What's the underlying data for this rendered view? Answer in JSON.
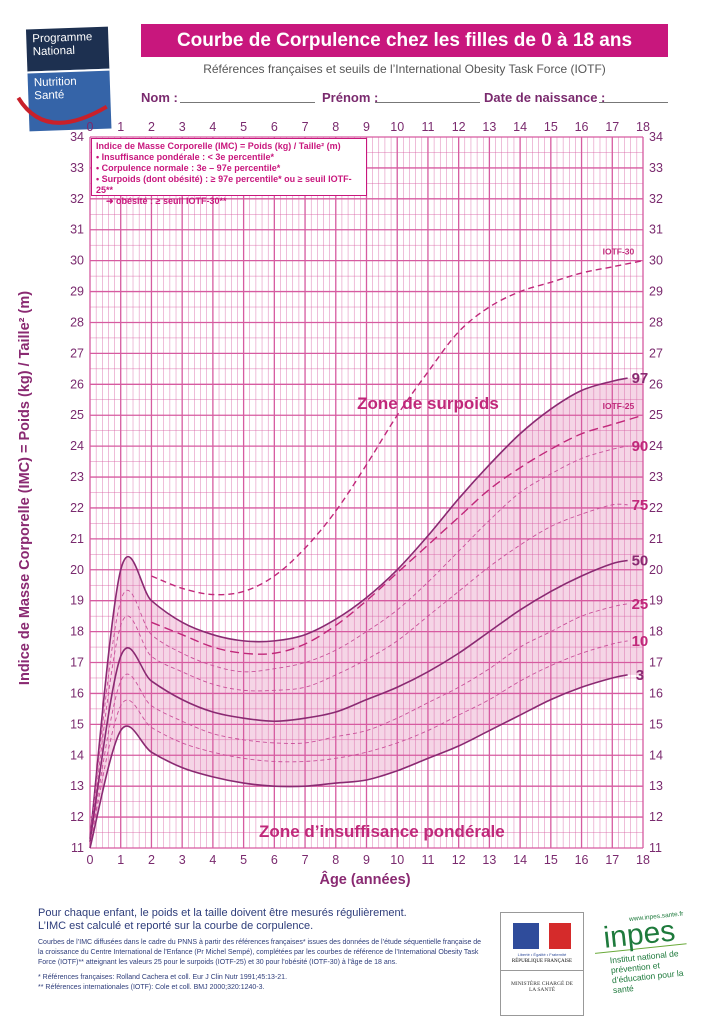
{
  "logo": {
    "line1": "Programme",
    "line2": "National",
    "line3": "Nutrition",
    "line4": "Santé"
  },
  "header": {
    "title": "Courbe de Corpulence chez les filles de 0 à 18 ans",
    "subtitle": "Références françaises et seuils de l’International Obesity Task Force (IOTF)",
    "fields": [
      "Nom :",
      "Prénom :",
      "Date de naissance :"
    ]
  },
  "legend": {
    "line1": "Indice de Masse Corporelle (IMC) = Poids (kg) / Taille² (m)",
    "line2": "• Insuffisance pondérale : < 3e percentile*",
    "line3": "• Corpulence normale : 3e – 97e percentile*",
    "line4": "• Surpoids (dont obésité) : ≥ 97e percentile* ou ≥ seuil IOTF-25**",
    "line5": "➜ obésité : ≥ seuil IOTF-30**"
  },
  "colors": {
    "accent": "#c8177d",
    "grid": "#d65ba0",
    "curve": "#8a2a72",
    "band": "#f5d5e6",
    "text_blue": "#2d3c7a"
  },
  "chart_data": {
    "type": "line",
    "title": "Courbe de Corpulence chez les filles de 0 à 18 ans",
    "xlabel": "Âge (années)",
    "ylabel": "Indice de Masse Corporelle (IMC) = Poids (kg) / Taille² (m)",
    "xlim": [
      0,
      18
    ],
    "ylim": [
      11,
      34
    ],
    "xticks": [
      0,
      1,
      2,
      3,
      4,
      5,
      6,
      7,
      8,
      9,
      10,
      11,
      12,
      13,
      14,
      15,
      16,
      17,
      18
    ],
    "yticks": [
      11,
      12,
      13,
      14,
      15,
      16,
      17,
      18,
      19,
      20,
      21,
      22,
      23,
      24,
      25,
      26,
      27,
      28,
      29,
      30,
      31,
      32,
      33,
      34
    ],
    "grid": true,
    "shaded_band": [
      "3",
      "97"
    ],
    "series": [
      {
        "name": "97",
        "style": "solid",
        "x": [
          0,
          1,
          2,
          3,
          4,
          5,
          6,
          7,
          8,
          9,
          10,
          11,
          12,
          13,
          14,
          15,
          16,
          17,
          17.5
        ],
        "y": [
          11.3,
          20.0,
          19.0,
          18.3,
          17.9,
          17.7,
          17.7,
          17.9,
          18.4,
          19.1,
          20.0,
          21.1,
          22.3,
          23.4,
          24.4,
          25.2,
          25.8,
          26.1,
          26.2
        ]
      },
      {
        "name": "90",
        "style": "dashed",
        "x": [
          0,
          1,
          2,
          3,
          4,
          5,
          6,
          7,
          8,
          9,
          10,
          11,
          12,
          13,
          14,
          15,
          16,
          17,
          17.5
        ],
        "y": [
          11.3,
          19.0,
          17.9,
          17.3,
          16.9,
          16.7,
          16.8,
          17.0,
          17.4,
          18.0,
          18.7,
          19.6,
          20.6,
          21.6,
          22.5,
          23.1,
          23.6,
          23.9,
          24.0
        ]
      },
      {
        "name": "75",
        "style": "dashed",
        "x": [
          0,
          1,
          2,
          3,
          4,
          5,
          6,
          7,
          8,
          9,
          10,
          11,
          12,
          13,
          14,
          15,
          16,
          17,
          17.5
        ],
        "y": [
          11.2,
          18.2,
          17.2,
          16.7,
          16.3,
          16.1,
          16.1,
          16.2,
          16.6,
          17.1,
          17.7,
          18.5,
          19.3,
          20.1,
          20.8,
          21.4,
          21.8,
          22.1,
          22.1
        ]
      },
      {
        "name": "50",
        "style": "solid",
        "x": [
          0,
          1,
          2,
          3,
          4,
          5,
          6,
          7,
          8,
          9,
          10,
          11,
          12,
          13,
          14,
          15,
          16,
          17,
          17.5
        ],
        "y": [
          11.2,
          17.2,
          16.4,
          15.8,
          15.4,
          15.2,
          15.1,
          15.2,
          15.4,
          15.8,
          16.2,
          16.7,
          17.3,
          18.0,
          18.7,
          19.3,
          19.8,
          20.2,
          20.3
        ]
      },
      {
        "name": "25",
        "style": "dashed",
        "x": [
          0,
          1,
          2,
          3,
          4,
          5,
          6,
          7,
          8,
          9,
          10,
          11,
          12,
          13,
          14,
          15,
          16,
          17,
          17.5
        ],
        "y": [
          11.1,
          16.4,
          15.6,
          15.1,
          14.7,
          14.5,
          14.4,
          14.4,
          14.6,
          14.8,
          15.2,
          15.7,
          16.2,
          16.8,
          17.5,
          18.0,
          18.5,
          18.8,
          18.9
        ]
      },
      {
        "name": "10",
        "style": "dashed",
        "x": [
          0,
          1,
          2,
          3,
          4,
          5,
          6,
          7,
          8,
          9,
          10,
          11,
          12,
          13,
          14,
          15,
          16,
          17,
          17.5
        ],
        "y": [
          11.1,
          15.6,
          14.9,
          14.4,
          14.1,
          13.9,
          13.8,
          13.8,
          13.9,
          14.1,
          14.4,
          14.8,
          15.3,
          15.8,
          16.4,
          16.9,
          17.3,
          17.6,
          17.7
        ]
      },
      {
        "name": "3",
        "style": "solid",
        "x": [
          0,
          1,
          2,
          3,
          4,
          5,
          6,
          7,
          8,
          9,
          10,
          11,
          12,
          13,
          14,
          15,
          16,
          17,
          17.5
        ],
        "y": [
          11.0,
          14.8,
          14.1,
          13.6,
          13.3,
          13.1,
          13.0,
          13.0,
          13.1,
          13.2,
          13.5,
          13.9,
          14.3,
          14.8,
          15.3,
          15.8,
          16.2,
          16.5,
          16.6
        ]
      },
      {
        "name": "IOTF-25",
        "style": "longdash",
        "x": [
          2,
          3,
          4,
          5,
          6,
          7,
          8,
          9,
          10,
          11,
          12,
          13,
          14,
          15,
          16,
          17,
          18
        ],
        "y": [
          18.3,
          17.9,
          17.5,
          17.3,
          17.3,
          17.6,
          18.2,
          19.0,
          19.9,
          20.8,
          21.7,
          22.6,
          23.3,
          23.9,
          24.4,
          24.7,
          25.0
        ]
      },
      {
        "name": "IOTF-30",
        "style": "longdash",
        "x": [
          2,
          3,
          4,
          5,
          6,
          7,
          8,
          9,
          10,
          11,
          12,
          13,
          14,
          15,
          16,
          17,
          18
        ],
        "y": [
          19.8,
          19.4,
          19.2,
          19.3,
          19.8,
          20.7,
          21.9,
          23.4,
          25.0,
          26.4,
          27.7,
          28.5,
          29.0,
          29.3,
          29.6,
          29.8,
          30.0
        ]
      }
    ],
    "annotations": [
      "Zone de surpoids",
      "Zone d’insuffisance pondérale"
    ]
  },
  "footer": {
    "main_line1": "Pour chaque enfant, le poids et la taille doivent être mesurés régulièrement.",
    "main_line2": "L’IMC est calculé et reporté sur la courbe de corpulence.",
    "small": "Courbes de l’IMC diffusées dans le cadre du PNNS à partir des références françaises* issues des données de l’étude séquentielle française de la croissance du Centre International de l’Enfance (Pr Michel Sempé), complétées par les courbes de référence de l’International Obesity Task Force (IOTF)** atteignant les valeurs 25 pour le surpoids (IOTF-25) et 30 pour l’obésité (IOTF-30) à l’âge de 18 ans.",
    "ref1": "* Références françaises: Rolland Cachera et coll. Eur J Clin Nutr 1991;45:13-21.",
    "ref2": "** Références internationales (IOTF): Cole et coll. BMJ 2000;320:1240-3.",
    "marianne_motto": "Liberté • Égalité • Fraternité",
    "marianne_name": "RÉPUBLIQUE FRANÇAISE",
    "ministry": "MINISTÈRE CHARGÉ DE LA SANTÉ",
    "inpes_url": "www.inpes.sante.fr",
    "inpes_name": "inpes",
    "inpes_desc": "Institut national de prévention et d’éducation pour la santé"
  }
}
